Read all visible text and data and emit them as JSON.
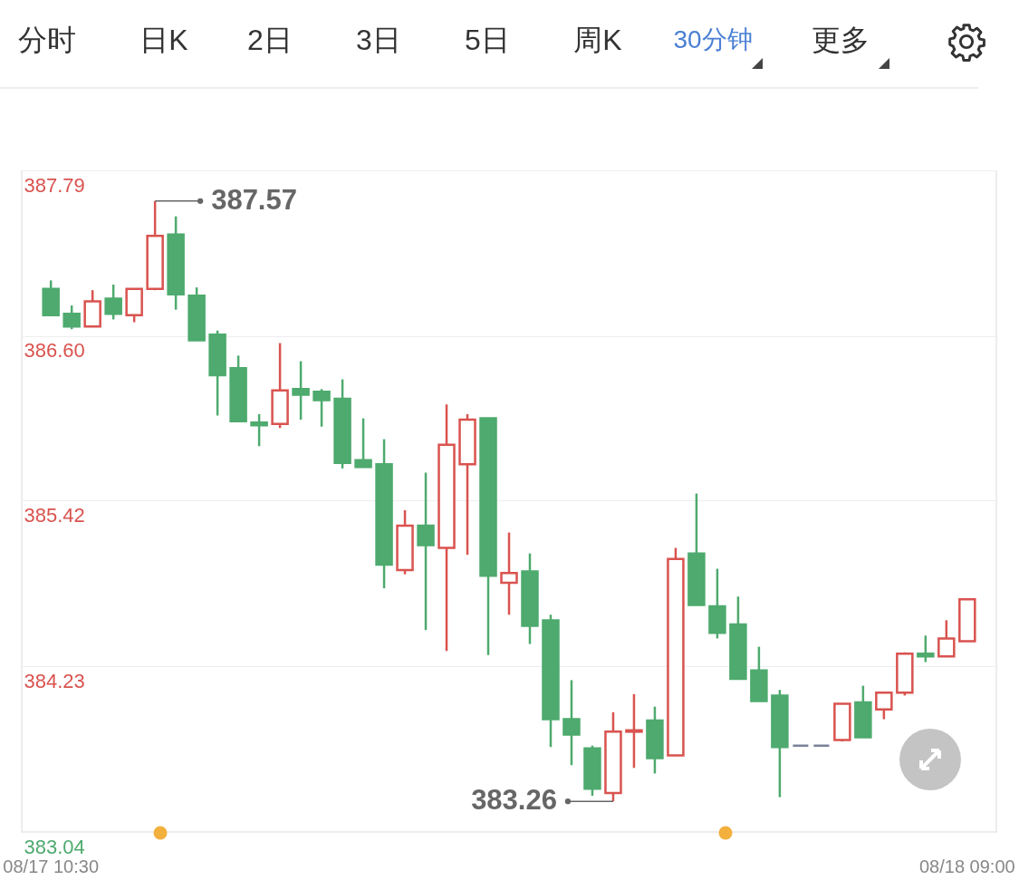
{
  "chart_data": {
    "type": "candlestick",
    "categories": [
      "08/17 10:30",
      null,
      null,
      null,
      null,
      null,
      null,
      null,
      null,
      null,
      null,
      null,
      null,
      null,
      null,
      null,
      null,
      null,
      null,
      null,
      null,
      null,
      null,
      null,
      null,
      null,
      null,
      null,
      null,
      null,
      null,
      null,
      null,
      null,
      null,
      null,
      null,
      null,
      null,
      null,
      null,
      null,
      null,
      null,
      "08/18 09:00"
    ],
    "ohlc": [
      [
        386.94,
        387.0,
        386.75,
        386.75
      ],
      [
        386.76,
        386.82,
        386.65,
        386.67
      ],
      [
        386.67,
        386.93,
        386.67,
        386.85
      ],
      [
        386.87,
        386.97,
        386.72,
        386.76
      ],
      [
        386.75,
        386.94,
        386.7,
        386.94
      ],
      [
        386.94,
        387.57,
        386.93,
        387.32
      ],
      [
        387.33,
        387.46,
        386.79,
        386.9
      ],
      [
        386.89,
        386.95,
        386.57,
        386.57
      ],
      [
        386.61,
        386.64,
        386.03,
        386.32
      ],
      [
        386.37,
        386.46,
        385.99,
        385.99
      ],
      [
        385.98,
        386.04,
        385.81,
        385.96
      ],
      [
        385.97,
        386.55,
        385.94,
        386.21
      ],
      [
        386.22,
        386.42,
        386.0,
        386.18
      ],
      [
        386.2,
        386.22,
        385.95,
        386.14
      ],
      [
        386.15,
        386.29,
        385.65,
        385.69
      ],
      [
        385.71,
        386.01,
        385.66,
        385.66
      ],
      [
        385.68,
        385.86,
        384.79,
        384.96
      ],
      [
        384.92,
        385.35,
        384.89,
        385.24
      ],
      [
        385.24,
        385.62,
        384.49,
        385.1
      ],
      [
        385.08,
        386.11,
        384.34,
        385.82
      ],
      [
        385.68,
        386.04,
        385.03,
        386.0
      ],
      [
        386.01,
        386.01,
        384.31,
        384.88
      ],
      [
        384.83,
        385.19,
        384.6,
        384.9
      ],
      [
        384.91,
        385.04,
        384.39,
        384.52
      ],
      [
        384.56,
        384.6,
        383.65,
        383.85
      ],
      [
        383.85,
        384.13,
        383.52,
        383.74
      ],
      [
        383.64,
        383.66,
        383.3,
        383.35
      ],
      [
        383.32,
        383.9,
        383.26,
        383.76
      ],
      [
        383.76,
        384.03,
        383.5,
        383.77
      ],
      [
        383.84,
        383.94,
        383.46,
        383.57
      ],
      [
        383.59,
        385.08,
        383.59,
        385.0
      ],
      [
        385.04,
        385.47,
        384.67,
        384.67
      ],
      [
        384.66,
        384.93,
        384.43,
        384.47
      ],
      [
        384.53,
        384.73,
        384.14,
        384.14
      ],
      [
        384.2,
        384.37,
        383.98,
        383.98
      ],
      [
        384.02,
        384.06,
        383.29,
        383.65
      ],
      [
        383.66,
        383.66,
        383.66,
        383.66
      ],
      [
        383.66,
        383.66,
        383.66,
        383.66
      ],
      [
        383.7,
        383.96,
        383.69,
        383.96
      ],
      [
        383.97,
        384.09,
        383.72,
        383.72
      ],
      [
        383.92,
        384.04,
        383.85,
        384.04
      ],
      [
        384.04,
        384.33,
        384.02,
        384.32
      ],
      [
        384.32,
        384.45,
        384.26,
        384.3
      ],
      [
        384.3,
        384.56,
        384.3,
        384.43
      ],
      [
        384.41,
        384.71,
        384.41,
        384.71
      ]
    ],
    "colors": [
      "#4eaa6e",
      "#4eaa6e",
      "#d9534f",
      "#4eaa6e",
      "#d9534f",
      "#d9534f",
      "#4eaa6e",
      "#4eaa6e",
      "#4eaa6e",
      "#4eaa6e",
      "#4eaa6e",
      "#d9534f",
      "#4eaa6e",
      "#4eaa6e",
      "#4eaa6e",
      "#4eaa6e",
      "#4eaa6e",
      "#d9534f",
      "#4eaa6e",
      "#d9534f",
      "#d9534f",
      "#4eaa6e",
      "#d9534f",
      "#4eaa6e",
      "#4eaa6e",
      "#4eaa6e",
      "#4eaa6e",
      "#d9534f",
      "#d9534f",
      "#4eaa6e",
      "#d9534f",
      "#4eaa6e",
      "#4eaa6e",
      "#4eaa6e",
      "#4eaa6e",
      "#4eaa6e",
      "#7a8299",
      "#7a8299",
      "#d9534f",
      "#4eaa6e",
      "#d9534f",
      "#d9534f",
      "#4eaa6e",
      "#d9534f",
      "#d9534f"
    ],
    "ylim": [
      383.04,
      387.79
    ],
    "yticks": [
      387.79,
      {
        "value": 386.6,
        "label": "386.60"
      },
      385.42,
      384.23,
      383.04
    ],
    "grid": "y",
    "annotations": [
      "分时",
      "日K",
      "2日",
      "3日",
      "5日",
      "周K",
      "30分钟",
      "更多",
      "387.57",
      "383.26"
    ]
  }
}
